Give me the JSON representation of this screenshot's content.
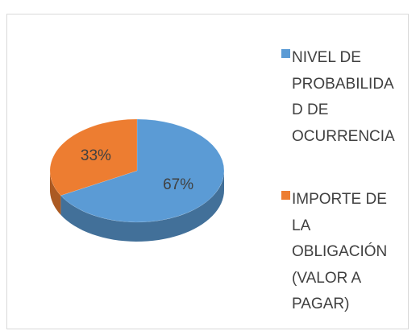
{
  "chart_data": {
    "type": "pie",
    "categories": [
      "NIVEL DE PROBABILIDAD DE OCURRENCIA",
      "IMPORTE DE LA OBLIGACIÓN (VALOR A PAGAR)"
    ],
    "values": [
      67,
      33
    ],
    "value_labels": [
      "67%",
      "33%"
    ],
    "colors": [
      "#5b9bd5",
      "#ed7d31"
    ],
    "legend": "right"
  }
}
